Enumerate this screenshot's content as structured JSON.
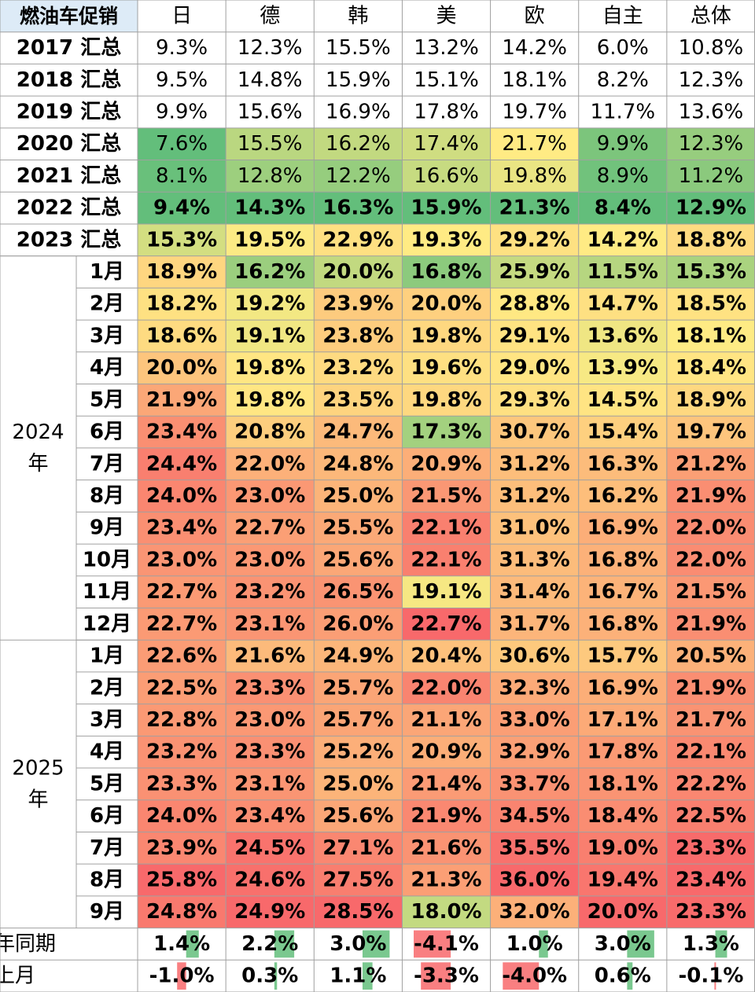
{
  "table": {
    "corner": "燃油车促销",
    "columns": [
      "日",
      "德",
      "韩",
      "美",
      "欧",
      "自主",
      "总体"
    ],
    "annual_rows": [
      {
        "label": "2017 汇总",
        "cells": [
          "9.3%",
          "12.3%",
          "15.5%",
          "13.2%",
          "14.2%",
          "6.0%",
          "10.8%"
        ]
      },
      {
        "label": "2018 汇总",
        "cells": [
          "9.5%",
          "14.8%",
          "15.9%",
          "15.1%",
          "18.1%",
          "8.2%",
          "12.3%"
        ]
      },
      {
        "label": "2019 汇总",
        "cells": [
          "9.9%",
          "15.6%",
          "16.9%",
          "17.8%",
          "19.7%",
          "11.7%",
          "13.6%"
        ]
      },
      {
        "label": "2020 汇总",
        "cells": [
          "7.6%",
          "15.5%",
          "16.2%",
          "17.4%",
          "21.7%",
          "9.9%",
          "12.3%"
        ]
      },
      {
        "label": "2021 汇总",
        "cells": [
          "8.1%",
          "12.8%",
          "12.2%",
          "16.6%",
          "19.8%",
          "8.9%",
          "11.2%"
        ]
      },
      {
        "label": "2022 汇总",
        "cells": [
          "9.4%",
          "14.3%",
          "16.3%",
          "15.9%",
          "21.3%",
          "8.4%",
          "12.9%"
        ]
      },
      {
        "label": "2023 汇总",
        "cells": [
          "15.3%",
          "19.5%",
          "22.9%",
          "19.3%",
          "29.2%",
          "14.2%",
          "18.8%"
        ]
      }
    ],
    "groups": [
      {
        "label": [
          "2024",
          "年"
        ],
        "rows": [
          {
            "label": "1月",
            "cells": [
              "18.9%",
              "16.2%",
              "20.0%",
              "16.8%",
              "25.9%",
              "11.5%",
              "15.3%"
            ]
          },
          {
            "label": "2月",
            "cells": [
              "18.2%",
              "19.2%",
              "23.9%",
              "20.0%",
              "28.8%",
              "14.7%",
              "18.5%"
            ]
          },
          {
            "label": "3月",
            "cells": [
              "18.6%",
              "19.1%",
              "23.8%",
              "19.8%",
              "29.1%",
              "13.6%",
              "18.1%"
            ]
          },
          {
            "label": "4月",
            "cells": [
              "20.0%",
              "19.8%",
              "23.2%",
              "19.6%",
              "29.0%",
              "13.9%",
              "18.4%"
            ]
          },
          {
            "label": "5月",
            "cells": [
              "21.9%",
              "19.8%",
              "23.5%",
              "19.8%",
              "29.3%",
              "14.5%",
              "18.9%"
            ]
          },
          {
            "label": "6月",
            "cells": [
              "23.4%",
              "20.8%",
              "24.7%",
              "17.3%",
              "30.7%",
              "15.4%",
              "19.7%"
            ]
          },
          {
            "label": "7月",
            "cells": [
              "24.4%",
              "22.0%",
              "24.8%",
              "20.9%",
              "31.2%",
              "16.3%",
              "21.2%"
            ]
          },
          {
            "label": "8月",
            "cells": [
              "24.0%",
              "23.0%",
              "25.0%",
              "21.5%",
              "31.2%",
              "16.2%",
              "21.9%"
            ]
          },
          {
            "label": "9月",
            "cells": [
              "23.4%",
              "22.7%",
              "25.5%",
              "22.1%",
              "31.0%",
              "16.9%",
              "22.0%"
            ]
          },
          {
            "label": "10月",
            "cells": [
              "23.0%",
              "23.0%",
              "25.6%",
              "22.1%",
              "31.3%",
              "16.8%",
              "22.0%"
            ]
          },
          {
            "label": "11月",
            "cells": [
              "22.7%",
              "23.2%",
              "26.5%",
              "19.1%",
              "31.4%",
              "16.7%",
              "21.5%"
            ]
          },
          {
            "label": "12月",
            "cells": [
              "22.7%",
              "23.1%",
              "26.0%",
              "22.7%",
              "31.7%",
              "16.8%",
              "21.9%"
            ]
          }
        ]
      },
      {
        "label": [
          "2025",
          "年"
        ],
        "rows": [
          {
            "label": "1月",
            "cells": [
              "22.6%",
              "21.6%",
              "24.9%",
              "20.4%",
              "30.6%",
              "15.7%",
              "20.5%"
            ]
          },
          {
            "label": "2月",
            "cells": [
              "22.5%",
              "23.3%",
              "25.7%",
              "22.0%",
              "32.3%",
              "16.9%",
              "21.9%"
            ]
          },
          {
            "label": "3月",
            "cells": [
              "22.8%",
              "23.0%",
              "25.7%",
              "21.1%",
              "33.0%",
              "17.1%",
              "21.7%"
            ]
          },
          {
            "label": "4月",
            "cells": [
              "23.2%",
              "23.3%",
              "25.2%",
              "20.9%",
              "32.9%",
              "17.8%",
              "22.1%"
            ]
          },
          {
            "label": "5月",
            "cells": [
              "23.3%",
              "23.1%",
              "25.0%",
              "21.4%",
              "33.7%",
              "18.1%",
              "22.2%"
            ]
          },
          {
            "label": "6月",
            "cells": [
              "24.0%",
              "23.4%",
              "25.6%",
              "21.9%",
              "34.5%",
              "18.4%",
              "22.5%"
            ]
          },
          {
            "label": "7月",
            "cells": [
              "23.9%",
              "24.5%",
              "27.1%",
              "21.6%",
              "35.5%",
              "19.0%",
              "23.3%"
            ]
          },
          {
            "label": "8月",
            "cells": [
              "25.8%",
              "24.6%",
              "27.5%",
              "21.3%",
              "36.0%",
              "19.4%",
              "23.4%"
            ]
          },
          {
            "label": "9月",
            "cells": [
              "24.8%",
              "24.9%",
              "28.5%",
              "18.0%",
              "32.0%",
              "20.0%",
              "23.3%"
            ]
          }
        ]
      }
    ],
    "compare_rows": [
      {
        "label": "较去年同期",
        "cells": [
          "1.4%",
          "2.2%",
          "3.0%",
          "-4.1%",
          "1.0%",
          "3.0%",
          "1.3%"
        ]
      },
      {
        "label": "较上月",
        "cells": [
          "-1.0%",
          "0.3%",
          "1.1%",
          "-3.3%",
          "-4.0%",
          "0.6%",
          "-0.1%"
        ]
      }
    ]
  }
}
